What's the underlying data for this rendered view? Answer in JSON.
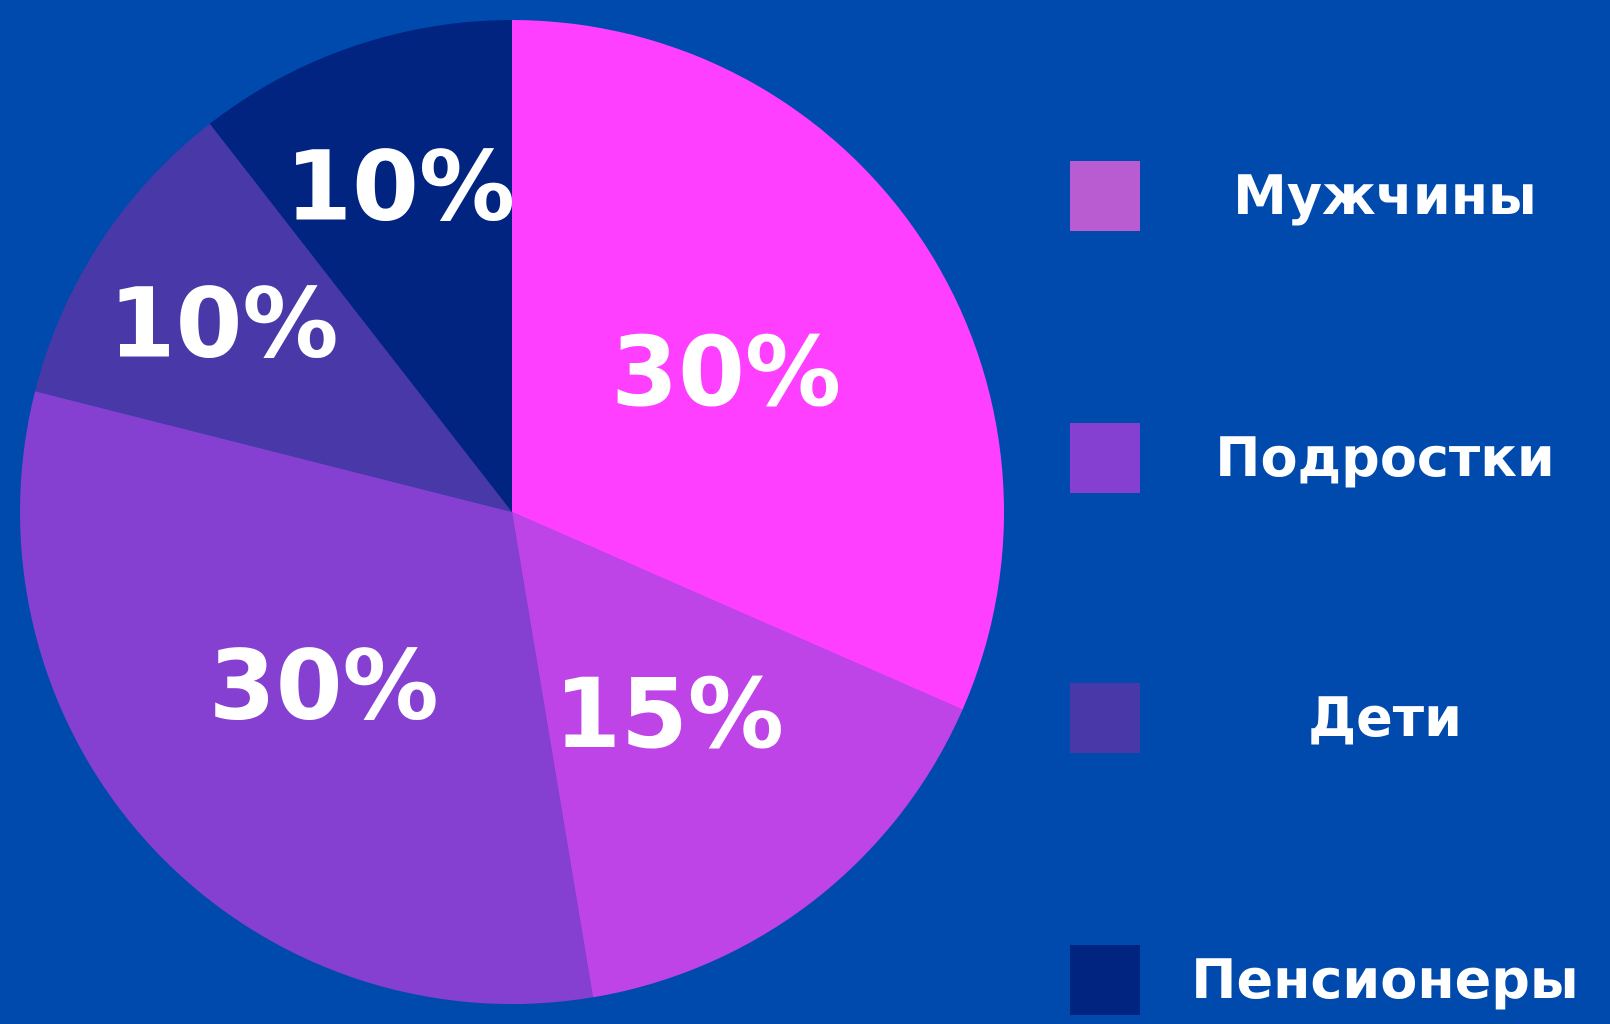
{
  "chart_data": {
    "type": "pie",
    "slices": [
      {
        "label": "Мужчины",
        "value": 30,
        "display": "30%",
        "color": "#FF3FFF"
      },
      {
        "label": "Подростки",
        "value": 15,
        "display": "15%",
        "color": "#BF44E8"
      },
      {
        "label": "Дети",
        "value": 30,
        "display": "30%",
        "color": "#8540D1"
      },
      {
        "label": "Пенсионеры",
        "value": 10,
        "display": "10%",
        "color": "#4838A8"
      },
      {
        "label": "",
        "value": 10,
        "display": "10%",
        "color": "#002480"
      }
    ],
    "legend": {
      "placement": "right",
      "items": [
        {
          "label": "Мужчины",
          "color": "#B95BD1"
        },
        {
          "label": "Подростки",
          "color": "#8540D1"
        },
        {
          "label": "Дети",
          "color": "#4838A8"
        },
        {
          "label": "Пенсионеры",
          "color": "#002480"
        }
      ]
    }
  },
  "background_color": "#004AAD"
}
